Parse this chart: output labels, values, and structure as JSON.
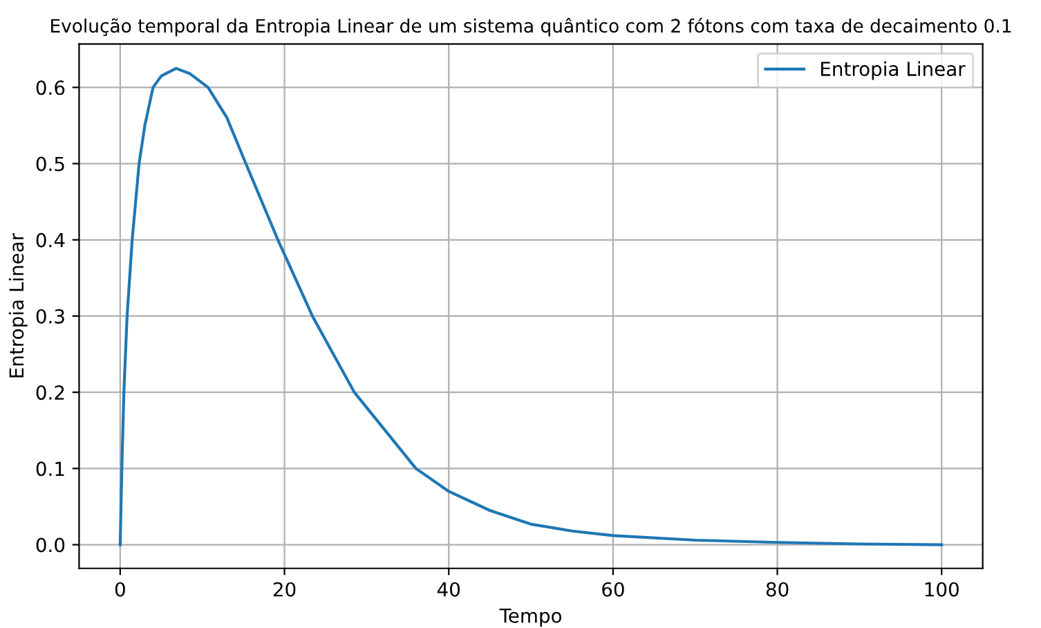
{
  "chart_data": {
    "type": "line",
    "title": "Evolução temporal da Entropia Linear de um sistema quântico com 2 fótons com taxa de decaimento 0.1",
    "xlabel": "Tempo",
    "ylabel": "Entropia Linear",
    "xlim": [
      -5,
      105
    ],
    "ylim": [
      -0.031,
      0.657
    ],
    "xticks": [
      0,
      20,
      40,
      60,
      80,
      100
    ],
    "yticks": [
      {
        "value": 0,
        "label": "0.0"
      },
      0.1,
      0.2,
      0.3,
      0.4,
      0.5,
      0.6
    ],
    "grid": true,
    "legend": "top right",
    "series": [
      {
        "name": "Entropia Linear",
        "color": "#1f77b4",
        "x": [
          0,
          0.2,
          0.45,
          0.84,
          1.46,
          2.3,
          3,
          4.0,
          5,
          6.8,
          8.5,
          10.7,
          13,
          15.3,
          19.2,
          23.4,
          28.5,
          36,
          40,
          45,
          50,
          55,
          60,
          70,
          80,
          90,
          100
        ],
        "values": [
          0,
          0.1,
          0.2,
          0.3,
          0.4,
          0.5,
          0.55,
          0.6,
          0.615,
          0.625,
          0.618,
          0.6,
          0.56,
          0.5,
          0.4,
          0.3,
          0.2,
          0.1,
          0.07,
          0.045,
          0.027,
          0.018,
          0.012,
          0.006,
          0.003,
          0.001,
          0.0
        ]
      }
    ]
  }
}
